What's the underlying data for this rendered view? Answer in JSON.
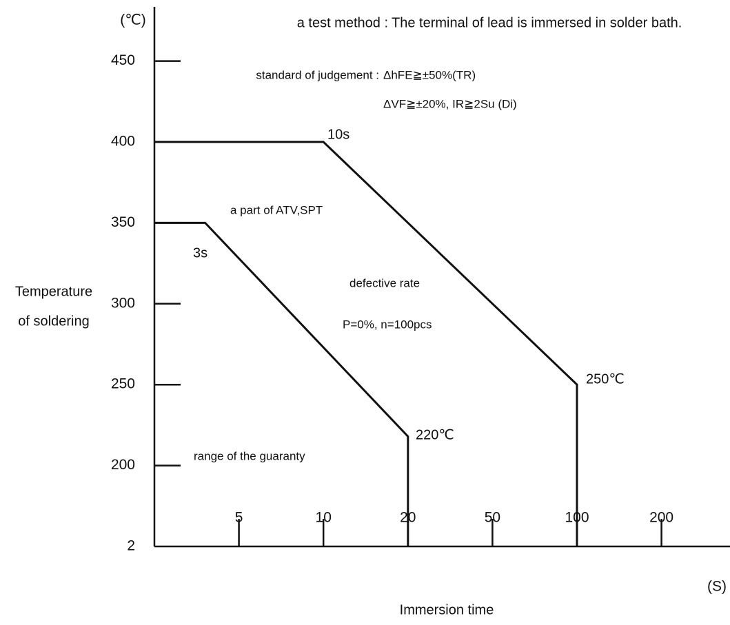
{
  "chart_data": {
    "type": "line",
    "x_label": "Immersion time",
    "x_unit": "(S)",
    "y_label": [
      "Temperature",
      "of soldering"
    ],
    "y_unit": "(℃)",
    "xlim": [
      0,
      200
    ],
    "xticks": [
      5,
      10,
      20,
      50,
      100,
      200
    ],
    "ylim": [
      2,
      450
    ],
    "yticks": [
      2,
      200,
      250,
      300,
      350,
      400,
      450
    ],
    "series": [
      {
        "x": [
          0,
          10,
          100,
          100
        ],
        "values": [
          400,
          400,
          250,
          2
        ],
        "color": "#111111"
      },
      {
        "x": [
          0,
          3,
          20,
          20
        ],
        "values": [
          350,
          350,
          218,
          2
        ],
        "color": "#111111"
      }
    ],
    "annotations": {
      "test_method_label": "a test method :",
      "test_method": "The terminal of lead is immersed in solder bath.",
      "judgement_label": "standard of judgement :",
      "judgement_1": "ΔhFE≧±50%(TR)",
      "judgement_2": "ΔVF≧±20%, IR≧2Su (Di)",
      "time_10s": "10s",
      "time_3s": "3s",
      "temp_250": "250℃",
      "temp_220": "220℃",
      "part": "a part of ATV,SPT",
      "defective_rate": "defective rate",
      "defective_value": "P=0%, n=100pcs",
      "guaranty": "range of the guaranty"
    }
  }
}
